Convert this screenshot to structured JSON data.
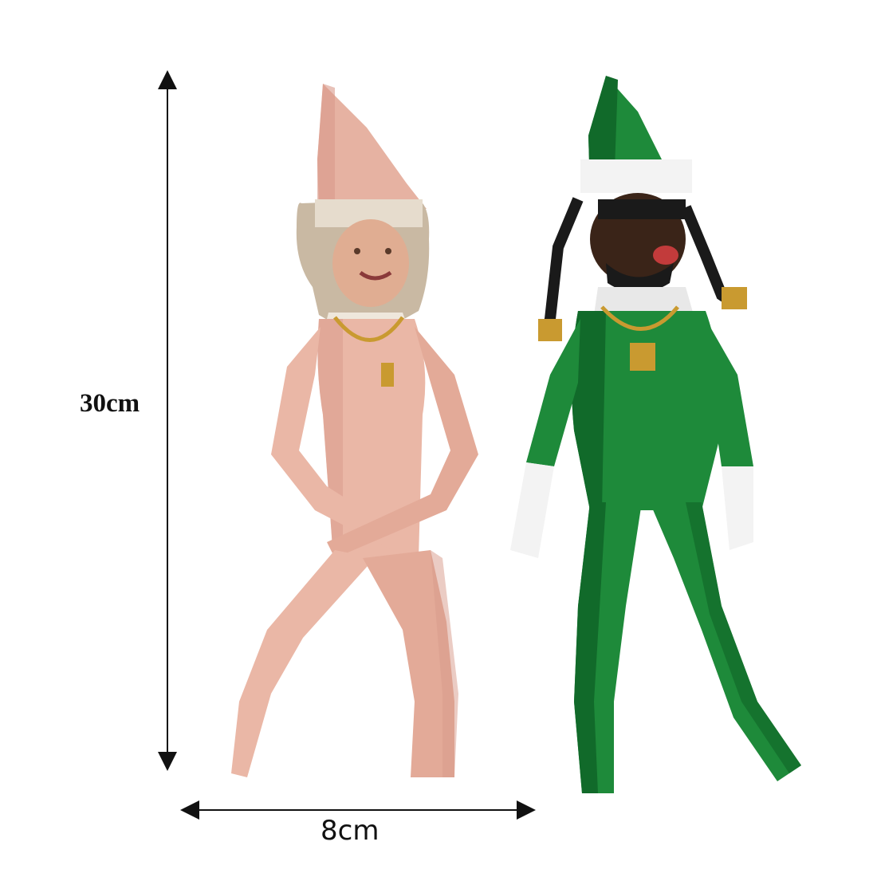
{
  "dimensions": {
    "height_label": "30cm",
    "width_label": "8cm"
  },
  "colors": {
    "background": "#ffffff",
    "pink_elf_body": "#eab7a6",
    "pink_elf_shade": "#d89a8a",
    "pink_elf_hat": "#e6b2a2",
    "pink_elf_hood": "#c9b9a3",
    "green_elf_suit": "#1e8a3a",
    "green_elf_shade": "#116a2a",
    "green_elf_trim": "#f3f3f3",
    "gold_chain": "#c99a30",
    "skin_light": "#e0ad92",
    "skin_dark": "#3a2418",
    "hair_black": "#1a1a1a"
  },
  "icons": {
    "height_arrow": "vertical-double-arrow",
    "width_arrow": "horizontal-double-arrow"
  }
}
